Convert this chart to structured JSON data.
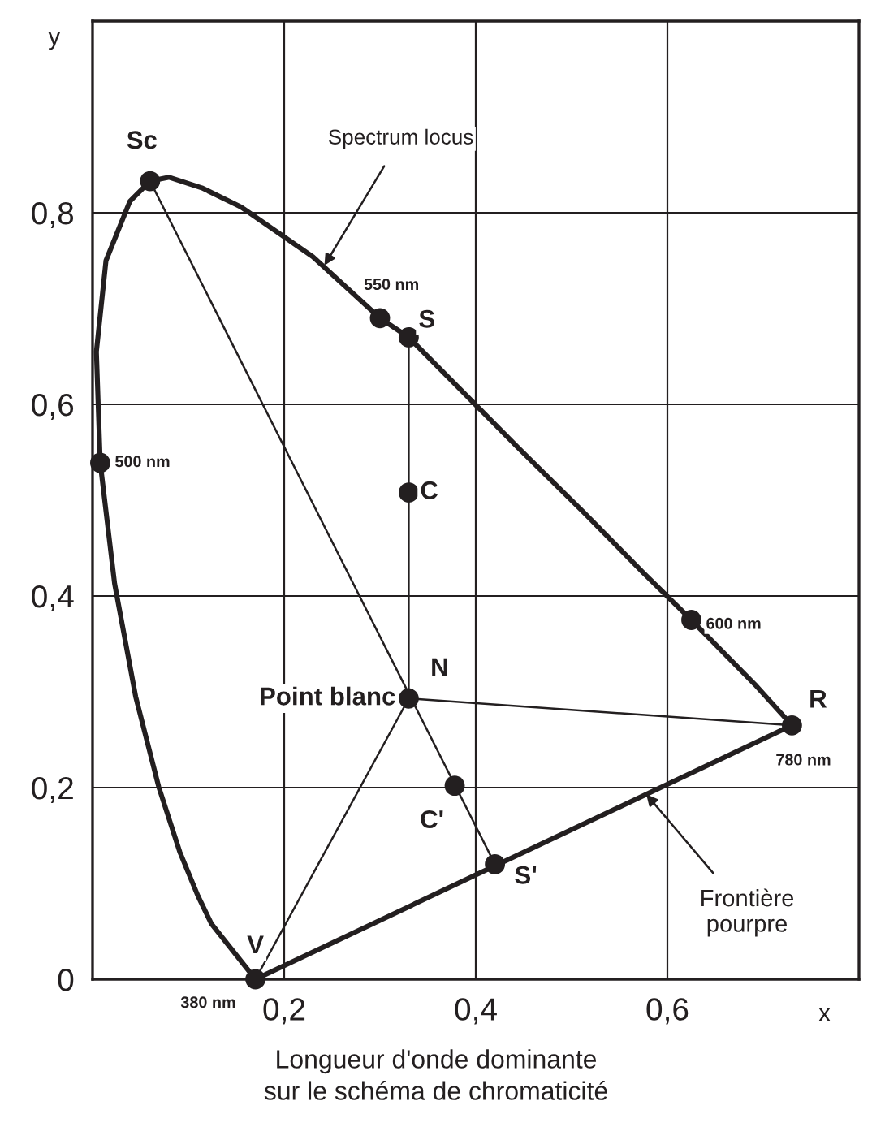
{
  "chart_data": {
    "type": "line",
    "xlabel": "x",
    "ylabel": "y",
    "xlim": [
      0,
      0.8
    ],
    "ylim": [
      0,
      1
    ],
    "xticks": [
      {
        "value": 0.2,
        "label": "0,2"
      },
      {
        "value": 0.4,
        "label": "0,4"
      },
      {
        "value": 0.6,
        "label": "0,6"
      }
    ],
    "yticks": [
      0,
      {
        "value": 0.2,
        "label": "0,2"
      },
      {
        "value": 0.4,
        "label": "0,4"
      },
      {
        "value": 0.6,
        "label": "0,6"
      },
      {
        "value": 0.8,
        "label": "0,8"
      }
    ],
    "grid": true,
    "line_style": "solid",
    "series": [
      {
        "color": "#231f20",
        "x": [
          0.17,
          0.124,
          0.11,
          0.091,
          0.069,
          0.045,
          0.023,
          0.008,
          0.004,
          0.014,
          0.039,
          0.06,
          0.08,
          0.114,
          0.155,
          0.23,
          0.3,
          0.33,
          0.444,
          0.513,
          0.575,
          0.625,
          0.691,
          0.73
        ],
        "values": [
          0,
          0.058,
          0.087,
          0.133,
          0.201,
          0.295,
          0.413,
          0.539,
          0.655,
          0.75,
          0.812,
          0.833,
          0.837,
          0.826,
          0.806,
          0.754,
          0.69,
          0.67,
          0.555,
          0.487,
          0.424,
          0.375,
          0.308,
          0.265
        ]
      },
      {
        "type": "line",
        "color": "#231f20",
        "x": [
          0.17,
          0.73
        ],
        "values": [
          0,
          0.265
        ]
      },
      {
        "type": "line",
        "color": "#231f20",
        "x": [
          0.06,
          0.42
        ],
        "values": [
          0.833,
          0.12
        ]
      },
      {
        "type": "line",
        "color": "#231f20",
        "x": [
          0.33,
          0.33
        ],
        "values": [
          0.67,
          0.293
        ]
      },
      {
        "type": "line",
        "color": "#231f20",
        "x": [
          0.33,
          0.73
        ],
        "values": [
          0.293,
          0.265
        ]
      },
      {
        "type": "line",
        "color": "#231f20",
        "x": [
          0.33,
          0.17
        ],
        "values": [
          0.293,
          0
        ]
      },
      {
        "type": "scatter",
        "color": "#231f20",
        "marker": "circle",
        "x": [
          0.06,
          0.3,
          0.33,
          0.008,
          0.33,
          0.33,
          0.378,
          0.42,
          0.17,
          0.73,
          0.625
        ],
        "values": [
          0.833,
          0.69,
          0.67,
          0.539,
          0.508,
          0.293,
          0.202,
          0.12,
          0,
          0.265,
          0.375
        ]
      }
    ],
    "annotations": [
      {
        "text": "Sc",
        "x": 0.06,
        "y": 0.833
      },
      {
        "text": "550 nm",
        "x": 0.3,
        "y": 0.69
      },
      {
        "text": "S",
        "x": 0.33,
        "y": 0.67
      },
      {
        "text": "500 nm",
        "x": 0.008,
        "y": 0.539
      },
      {
        "text": "C",
        "x": 0.33,
        "y": 0.508
      },
      {
        "text": "N",
        "x": 0.33,
        "y": 0.293
      },
      {
        "text": "Point blanc",
        "x": 0.33,
        "y": 0.293
      },
      {
        "text": "C'",
        "x": 0.378,
        "y": 0.202
      },
      {
        "text": "S'",
        "x": 0.42,
        "y": 0.12
      },
      {
        "text": "V",
        "x": 0.17,
        "y": 0
      },
      {
        "text": "380 nm",
        "x": 0.17,
        "y": 0
      },
      {
        "text": "R",
        "x": 0.73,
        "y": 0.265
      },
      {
        "text": "780 nm",
        "x": 0.73,
        "y": 0.265
      },
      {
        "text": "600 nm",
        "x": 0.625,
        "y": 0.375
      },
      {
        "text": "Spectrum locus",
        "x": 0.242,
        "y": 0.745
      },
      {
        "text": "Frontière\npourpre",
        "x": 0.578,
        "y": 0.193
      },
      "Longueur d'onde dominante\nsur le schéma de chromaticité"
    ]
  }
}
